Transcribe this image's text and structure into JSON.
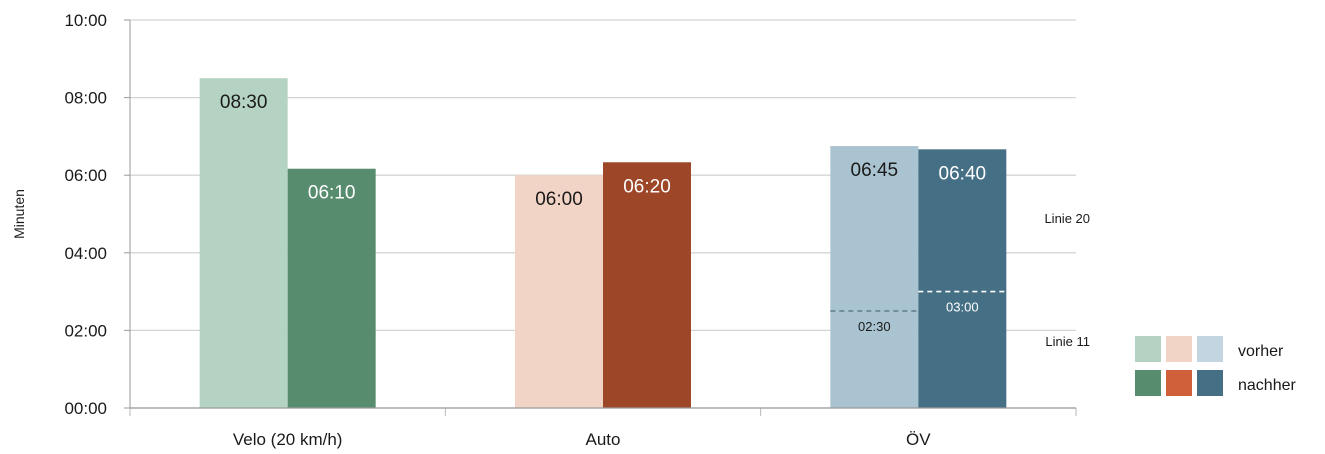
{
  "chart_data": {
    "type": "bar",
    "ylabel": "Minuten",
    "ylim": [
      0,
      10
    ],
    "y_ticks": [
      "00:00",
      "02:00",
      "04:00",
      "06:00",
      "08:00",
      "10:00"
    ],
    "grid": true,
    "categories": [
      "Velo (20 km/h)",
      "Auto",
      "ÖV"
    ],
    "series": [
      {
        "name": "vorher",
        "values": [
          8.5,
          6.0,
          6.75
        ],
        "labels": [
          "08:30",
          "06:00",
          "06:45"
        ]
      },
      {
        "name": "nachher",
        "values": [
          6.1667,
          6.3333,
          6.6667
        ],
        "labels": [
          "06:10",
          "06:20",
          "06:40"
        ]
      }
    ],
    "colors": {
      "vorher": [
        "#b5d3c3",
        "#f2d4c6",
        "#a9c3d0"
      ],
      "nachher": [
        "#578d6e",
        "#9d4628",
        "#456f85"
      ]
    },
    "legend_colors": {
      "vorher": [
        "#b5d3c3",
        "#f2d4c6",
        "#c3d5e0"
      ],
      "nachher": [
        "#578d6e",
        "#d0603a",
        "#456f85"
      ]
    },
    "label_colors": {
      "vorher": [
        "#1a1a1a",
        "#1a1a1a",
        "#1a1a1a"
      ],
      "nachher": [
        "#ffffff",
        "#ffffff",
        "#ffffff"
      ]
    },
    "legend": {
      "position": "right",
      "entries": [
        "vorher",
        "nachher"
      ]
    },
    "segment_markers": [
      {
        "category": "ÖV",
        "series": "vorher",
        "value": 2.5,
        "label": "02:30"
      },
      {
        "category": "ÖV",
        "series": "nachher",
        "value": 3.0,
        "label": "03:00"
      }
    ],
    "annotations": [
      "Linie 20",
      "Linie 11"
    ]
  }
}
